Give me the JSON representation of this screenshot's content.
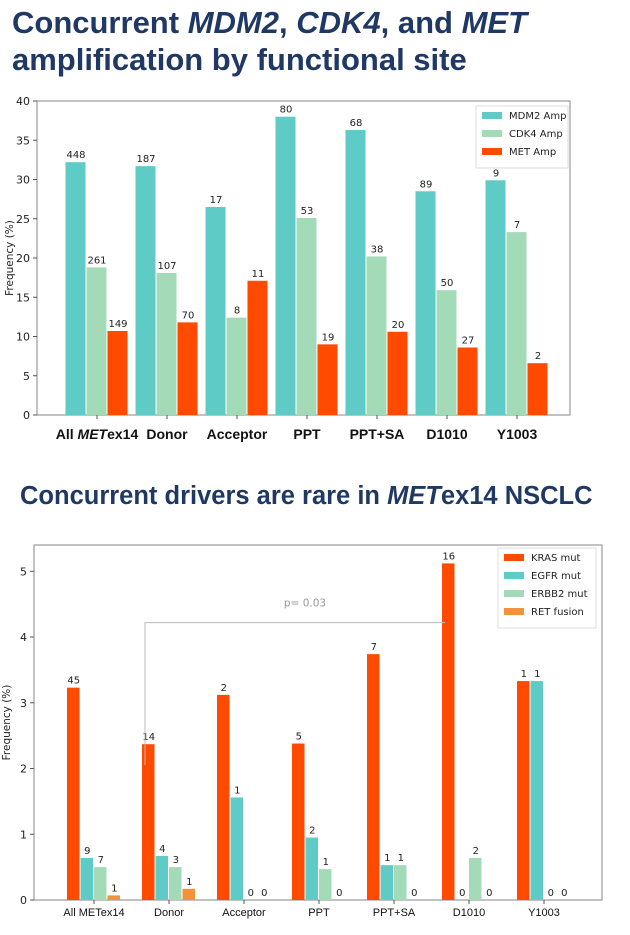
{
  "colors": {
    "title": "#1f3864",
    "mdm2": "#5ecbc6",
    "cdk4": "#a3dbb8",
    "met": "#ff4a00",
    "ret": "#f59139",
    "pline": "#bbbbbb"
  },
  "chart_data": [
    {
      "type": "bar",
      "title_parts": [
        {
          "text": "Concurrent ",
          "italic": false
        },
        {
          "text": "MDM2",
          "italic": true
        },
        {
          "text": ", ",
          "italic": false
        },
        {
          "text": "CDK4",
          "italic": true
        },
        {
          "text": ", and ",
          "italic": false
        },
        {
          "text": "MET",
          "italic": true
        },
        {
          "text": "\n amplification by functional site",
          "italic": false
        }
      ],
      "xlabel": "",
      "ylabel": "Frequency (%)",
      "ylim": [
        0,
        40
      ],
      "yticks": [
        0,
        5,
        10,
        15,
        20,
        25,
        30,
        35,
        40
      ],
      "categories": [
        "All METex14",
        "Donor",
        "Acceptor",
        "PPT",
        "PPT+SA",
        "D1010",
        "Y1003"
      ],
      "legend_position": "top-right",
      "grid": false,
      "series": [
        {
          "name": "MDM2 Amp",
          "color": "#5ecbc6",
          "values": [
            32.2,
            31.7,
            26.5,
            38.0,
            36.3,
            28.5,
            29.9
          ],
          "labels": [
            "448",
            "187",
            "17",
            "80",
            "68",
            "89",
            "9"
          ]
        },
        {
          "name": "CDK4 Amp",
          "color": "#a3dbb8",
          "values": [
            18.8,
            18.1,
            12.4,
            25.1,
            20.2,
            15.9,
            23.3
          ],
          "labels": [
            "261",
            "107",
            "8",
            "53",
            "38",
            "50",
            "7"
          ]
        },
        {
          "name": "MET Amp",
          "color": "#ff4a00",
          "values": [
            10.7,
            11.8,
            17.1,
            9.0,
            10.6,
            8.6,
            6.6
          ],
          "labels": [
            "149",
            "70",
            "11",
            "19",
            "20",
            "27",
            "2"
          ]
        }
      ]
    },
    {
      "type": "bar",
      "title_parts": [
        {
          "text": "Concurrent drivers are rare in ",
          "italic": false
        },
        {
          "text": "MET",
          "italic": true
        },
        {
          "text": "ex14 NSCLC",
          "italic": false
        }
      ],
      "xlabel": "",
      "ylabel": "Frequency (%)",
      "ylim": [
        0,
        5.4
      ],
      "yticks": [
        0,
        1,
        2,
        3,
        4,
        5
      ],
      "categories": [
        "All METex14",
        "Donor",
        "Acceptor",
        "PPT",
        "PPT+SA",
        "D1010",
        "Y1003"
      ],
      "legend_position": "top-right",
      "grid": false,
      "annotation": {
        "text": "p= 0.03",
        "from": "Donor",
        "to": "D1010",
        "y": 4.22
      },
      "series": [
        {
          "name": "KRAS mut",
          "color": "#ff4a00",
          "values": [
            3.23,
            2.37,
            3.12,
            2.38,
            3.74,
            5.12,
            3.33
          ],
          "labels": [
            "45",
            "14",
            "2",
            "5",
            "7",
            "16",
            "1"
          ]
        },
        {
          "name": "EGFR mut",
          "color": "#5ecbc6",
          "values": [
            0.64,
            0.67,
            1.56,
            0.95,
            0.53,
            0,
            3.33
          ],
          "labels": [
            "9",
            "4",
            "1",
            "2",
            "1",
            "0",
            "1"
          ]
        },
        {
          "name": "ERBB2 mut",
          "color": "#a3dbb8",
          "values": [
            0.5,
            0.5,
            0,
            0.47,
            0.53,
            0.64,
            0
          ],
          "labels": [
            "7",
            "3",
            "0",
            "1",
            "1",
            "2",
            "0"
          ]
        },
        {
          "name": "RET fusion",
          "color": "#f59139",
          "values": [
            0.07,
            0.17,
            0,
            0,
            0,
            0,
            0
          ],
          "labels": [
            "1",
            "1",
            "0",
            "0",
            "0",
            "0",
            "0"
          ]
        }
      ]
    }
  ]
}
